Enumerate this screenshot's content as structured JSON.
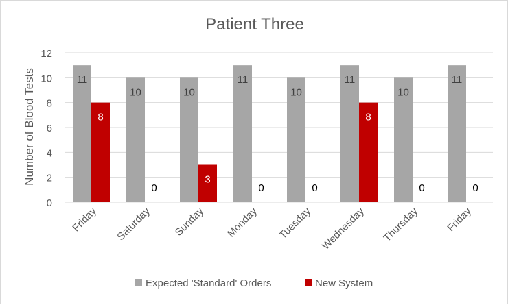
{
  "chart_data": {
    "type": "bar",
    "title": "Patient Three",
    "xlabel": "",
    "ylabel": "Number of Blood Tests",
    "ylim": [
      0,
      12
    ],
    "yticks": [
      0,
      2,
      4,
      6,
      8,
      10,
      12
    ],
    "grid": true,
    "legend_position": "bottom",
    "categories": [
      "Friday",
      "Saturday",
      "Sunday",
      "Monday",
      "Tuesday",
      "Wednesday",
      "Thursday",
      "Friday"
    ],
    "series": [
      {
        "name": "Expected 'Standard' Orders",
        "color": "#a6a6a6",
        "values": [
          11,
          10,
          10,
          11,
          10,
          11,
          10,
          11
        ]
      },
      {
        "name": "New System",
        "color": "#c00000",
        "values": [
          8,
          0,
          3,
          0,
          0,
          8,
          0,
          0
        ]
      }
    ]
  }
}
